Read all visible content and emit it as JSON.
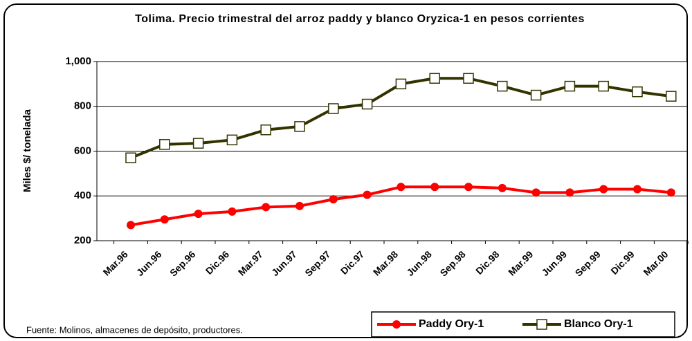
{
  "chart_data": {
    "type": "line",
    "title": "Tolima. Precio trimestral del arroz paddy y blanco Oryzica-1 en pesos corrientes",
    "y_label": "Miles $/ tonelada",
    "source": "Fuente: Molinos, almacenes de depósito, productores.",
    "categories": [
      "Mar.96",
      "Jun.96",
      "Sep.96",
      "Dic.96",
      "Mar.97",
      "Jun.97",
      "Sep.97",
      "Dic.97",
      "Mar.98",
      "Jun.98",
      "Sep.98",
      "Dic.98",
      "Mar.99",
      "Jun.99",
      "Sep.99",
      "Dic.99",
      "Mar.00"
    ],
    "series": [
      {
        "name": "Paddy Ory-1",
        "color": "#ff0000",
        "marker": "circle",
        "values": [
          270,
          295,
          320,
          330,
          350,
          355,
          385,
          405,
          440,
          440,
          440,
          435,
          415,
          415,
          430,
          430,
          415
        ]
      },
      {
        "name": "Blanco Ory-1",
        "color": "#333300",
        "marker": "square",
        "values": [
          570,
          630,
          635,
          650,
          695,
          710,
          790,
          810,
          900,
          925,
          925,
          890,
          850,
          890,
          890,
          865,
          845
        ]
      }
    ],
    "ylim": [
      200,
      1000
    ],
    "yticks": [
      200,
      400,
      600,
      800,
      {
        "value": 1000,
        "label": "1,000"
      }
    ],
    "grid": true
  }
}
